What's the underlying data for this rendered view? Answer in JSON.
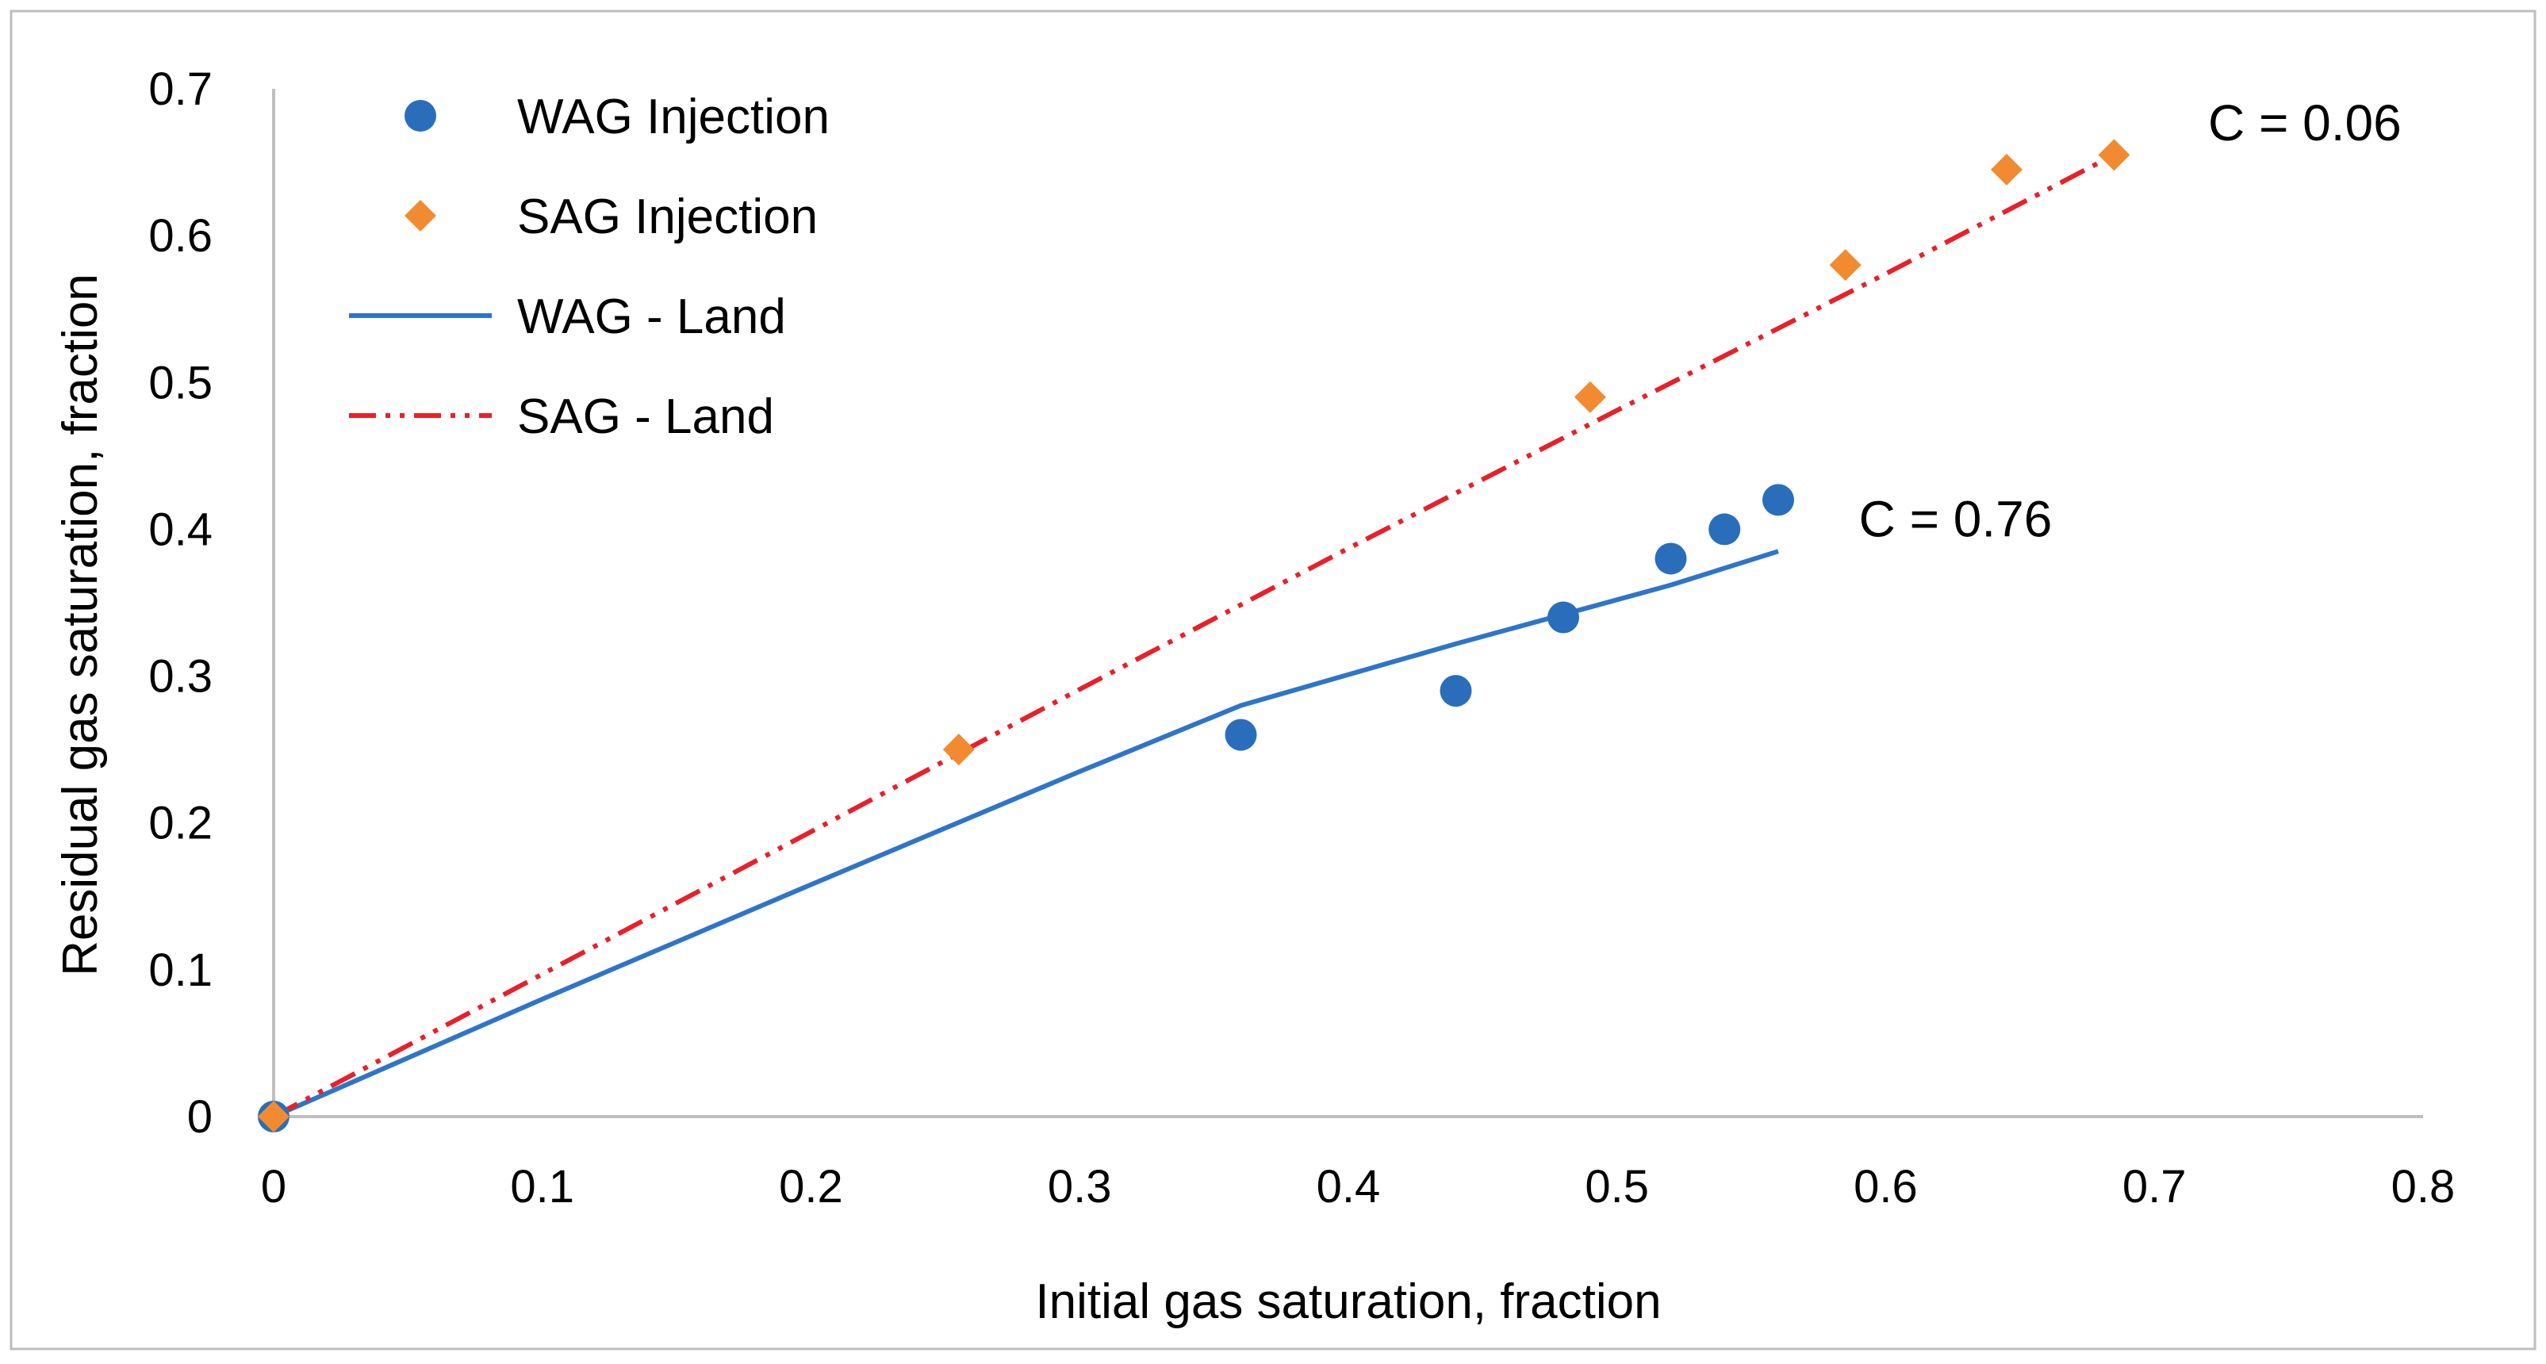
{
  "chart_data": {
    "type": "scatter",
    "xlabel": "Initial gas saturation, fraction",
    "ylabel": "Residual gas saturation, fraction",
    "xlim": [
      0,
      0.8
    ],
    "ylim": [
      0,
      0.7
    ],
    "x_ticks": [
      "0",
      "0.1",
      "0.2",
      "0.3",
      "0.4",
      "0.5",
      "0.6",
      "0.7",
      "0.8"
    ],
    "y_ticks": [
      "0",
      "0.1",
      "0.2",
      "0.3",
      "0.4",
      "0.5",
      "0.6",
      "0.7"
    ],
    "grid": false,
    "legend_position": "top-left",
    "series": [
      {
        "name": "WAG Injection",
        "kind": "marker",
        "marker": "circle",
        "color": "#2A6EBB",
        "points": [
          [
            0,
            0
          ],
          [
            0.36,
            0.26
          ],
          [
            0.44,
            0.29
          ],
          [
            0.48,
            0.34
          ],
          [
            0.52,
            0.38
          ],
          [
            0.54,
            0.4
          ],
          [
            0.56,
            0.42
          ]
        ]
      },
      {
        "name": "SAG Injection",
        "kind": "marker",
        "marker": "diamond",
        "color": "#F28B30",
        "points": [
          [
            0,
            0
          ],
          [
            0.255,
            0.25
          ],
          [
            0.49,
            0.49
          ],
          [
            0.585,
            0.58
          ],
          [
            0.645,
            0.645
          ],
          [
            0.685,
            0.655
          ]
        ]
      },
      {
        "name": "WAG - Land",
        "kind": "line",
        "dash": "solid",
        "color": "#2E75C9",
        "points": [
          [
            0,
            0
          ],
          [
            0.1,
            0.08
          ],
          [
            0.2,
            0.158
          ],
          [
            0.3,
            0.235
          ],
          [
            0.36,
            0.28
          ],
          [
            0.44,
            0.322
          ],
          [
            0.48,
            0.342
          ],
          [
            0.52,
            0.362
          ],
          [
            0.56,
            0.385
          ]
        ]
      },
      {
        "name": "SAG - Land",
        "kind": "line",
        "dash": "dash-dot-dot",
        "color": "#E8202A",
        "points": [
          [
            0,
            0
          ],
          [
            0.1,
            0.097
          ],
          [
            0.2,
            0.194
          ],
          [
            0.3,
            0.291
          ],
          [
            0.4,
            0.387
          ],
          [
            0.5,
            0.481
          ],
          [
            0.6,
            0.574
          ],
          [
            0.685,
            0.655
          ]
        ]
      }
    ],
    "annotations": [
      {
        "text": "C = 0.06",
        "x": 0.72,
        "y": 0.665
      },
      {
        "text": "C = 0.76",
        "x": 0.59,
        "y": 0.395
      }
    ]
  }
}
